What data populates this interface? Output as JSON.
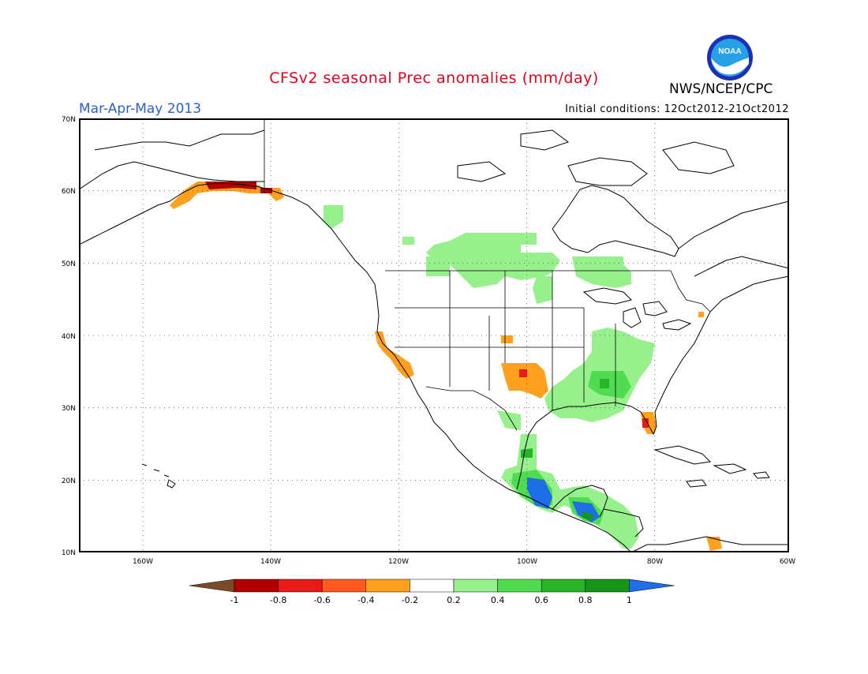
{
  "title": "CFSv2 seasonal Prec anomalies (mm/day)",
  "agency": "NWS/NCEP/CPC",
  "logo_text": "NOAA",
  "period": "Mar-Apr-May 2013",
  "initial_conditions": "Initial conditions: 12Oct2012-21Oct2012",
  "map": {
    "lat_labels": [
      "70N",
      "60N",
      "50N",
      "40N",
      "30N",
      "20N",
      "10N"
    ],
    "lon_labels": [
      "160W",
      "140W",
      "120W",
      "100W",
      "80W",
      "60W"
    ],
    "grid": "dotted",
    "projection": "lat-lon",
    "extent": {
      "lon_min": -171,
      "lon_max": -60,
      "lat_min": 10,
      "lat_max": 70
    }
  },
  "colorbar": {
    "ticks": [
      "-1",
      "-0.8",
      "-0.6",
      "-0.4",
      "-0.2",
      "0.2",
      "0.4",
      "0.6",
      "0.8",
      "1"
    ],
    "colors": [
      "#7a4a2a",
      "#b00000",
      "#e81a1a",
      "#ff5a1e",
      "#ffa01e",
      "#ffffff",
      "#96f08c",
      "#50dc50",
      "#28b428",
      "#169616",
      "#1e6ee8"
    ]
  },
  "anomaly_regions": [
    {
      "region": "Southern Alaska coast",
      "sign": "dry",
      "range": "-0.2 to -0.8"
    },
    {
      "region": "California coast",
      "sign": "dry",
      "range": "-0.2 to -0.4"
    },
    {
      "region": "Texas / Oklahoma",
      "sign": "dry",
      "range": "-0.2 to -0.6"
    },
    {
      "region": "Southern Florida",
      "sign": "dry",
      "range": "-0.2 to -0.6"
    },
    {
      "region": "Southern Canada prairies",
      "sign": "wet",
      "range": "0.2 to 0.4"
    },
    {
      "region": "Southeast US",
      "sign": "wet",
      "range": "0.2 to 0.8"
    },
    {
      "region": "Southern Mexico",
      "sign": "wet",
      "range": "0.2 to 1"
    },
    {
      "region": "Central America",
      "sign": "wet",
      "range": "0.2 to 1"
    }
  ]
}
